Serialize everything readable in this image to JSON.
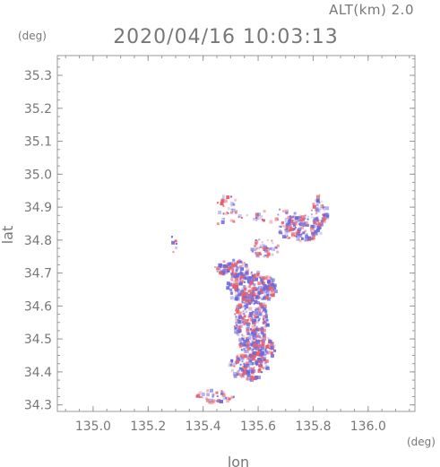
{
  "header": {
    "title": "2020/04/16 10:03:13",
    "subtitle": "ALT(km) 2.0"
  },
  "chart_data": {
    "type": "heatmap",
    "title": "2020/04/16 10:03:13",
    "subtitle": "ALT(km) 2.0",
    "xlabel": "lon",
    "ylabel": "lat",
    "xunit": "(deg)",
    "yunit": "(deg)",
    "xlim": [
      134.87,
      136.17
    ],
    "ylim": [
      34.28,
      35.36
    ],
    "xticks": [
      "135.0",
      "135.2",
      "135.4",
      "135.6",
      "135.8",
      "136.0"
    ],
    "xtick_values": [
      135.0,
      135.2,
      135.4,
      135.6,
      135.8,
      136.0
    ],
    "yticks": [
      "34.3",
      "34.4",
      "34.5",
      "34.6",
      "34.7",
      "34.8",
      "34.9",
      "35.0",
      "35.1",
      "35.2",
      "35.3"
    ],
    "ytick_values": [
      34.3,
      34.4,
      34.5,
      34.6,
      34.7,
      34.8,
      34.9,
      35.0,
      35.1,
      35.2,
      35.3
    ],
    "grid": false,
    "colors": {
      "positive": "#e8606a",
      "negative": "#6868e0",
      "axis": "#999999",
      "text": "#777777"
    },
    "regions": [
      {
        "lon": 135.57,
        "lat": 34.55,
        "rx": 0.06,
        "ry": 0.1,
        "count": 320
      },
      {
        "lon": 135.57,
        "lat": 34.66,
        "rx": 0.09,
        "ry": 0.05,
        "count": 260
      },
      {
        "lon": 135.5,
        "lat": 34.72,
        "rx": 0.06,
        "ry": 0.025,
        "count": 80
      },
      {
        "lon": 135.56,
        "lat": 34.42,
        "rx": 0.07,
        "ry": 0.04,
        "count": 140
      },
      {
        "lon": 135.62,
        "lat": 34.47,
        "rx": 0.04,
        "ry": 0.04,
        "count": 70
      },
      {
        "lon": 135.75,
        "lat": 34.84,
        "rx": 0.08,
        "ry": 0.04,
        "count": 160
      },
      {
        "lon": 135.82,
        "lat": 34.89,
        "rx": 0.03,
        "ry": 0.05,
        "count": 60
      },
      {
        "lon": 135.62,
        "lat": 34.78,
        "rx": 0.05,
        "ry": 0.03,
        "count": 50
      },
      {
        "lon": 135.44,
        "lat": 34.33,
        "rx": 0.07,
        "ry": 0.02,
        "count": 40
      },
      {
        "lon": 135.48,
        "lat": 34.89,
        "rx": 0.05,
        "ry": 0.05,
        "count": 35
      },
      {
        "lon": 135.29,
        "lat": 34.79,
        "rx": 0.01,
        "ry": 0.03,
        "count": 8
      },
      {
        "lon": 135.62,
        "lat": 34.88,
        "rx": 0.12,
        "ry": 0.02,
        "count": 25
      }
    ]
  }
}
